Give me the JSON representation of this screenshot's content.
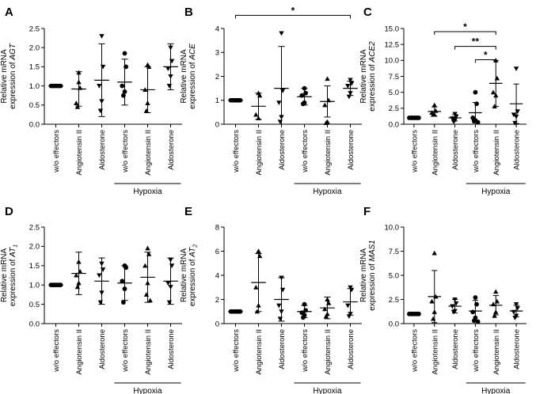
{
  "chart_data": [
    {
      "panel": "A",
      "type": "scatter",
      "ylabel_line1": "Relative mRNA",
      "ylabel_line2": "expression of",
      "ylabel_gene": "AGT",
      "ylabel_sub": "",
      "ylim": [
        0,
        2.5
      ],
      "yticks": [
        "0.0",
        "0.5",
        "1.0",
        "1.5",
        "2.0",
        "2.5"
      ],
      "categories": [
        "w/o effectors",
        "Angiotensin II",
        "Aldosterone",
        "w/o effectors",
        "Angiotensin II",
        "Aldosterone"
      ],
      "group_label": "Hypoxia",
      "group_start": 3,
      "group_end": 5,
      "markers": [
        "circle",
        "triangle",
        "triangle-down",
        "circle",
        "triangle",
        "triangle-down"
      ],
      "means": [
        1.0,
        0.92,
        1.15,
        1.1,
        0.9,
        1.5
      ],
      "sd": [
        0.0,
        0.45,
        0.95,
        0.6,
        0.6,
        0.6
      ],
      "points": [
        [
          1,
          1,
          1,
          1,
          1,
          1
        ],
        [
          1.35,
          0.95,
          0.55,
          1.1,
          0.45
        ],
        [
          2.3,
          1.5,
          1.0,
          0.6,
          0.35
        ],
        [
          1.85,
          1.5,
          1.0,
          0.85,
          0.75
        ],
        [
          1.55,
          1.5,
          0.9,
          0.55,
          0.35
        ],
        [
          2.0,
          1.65,
          1.45,
          1.25,
          1.0
        ]
      ],
      "significance": []
    },
    {
      "panel": "B",
      "type": "scatter",
      "ylabel_line1": "Relative mRNA",
      "ylabel_line2": "expression of",
      "ylabel_gene": "ACE",
      "ylabel_sub": "",
      "ylim": [
        0,
        4
      ],
      "yticks": [
        "0",
        "1",
        "2",
        "3",
        "4"
      ],
      "categories": [
        "w/o effectors",
        "Angiotensin II",
        "Aldosterone",
        "w/o effectors",
        "Angiotensin II",
        "Aldosterone"
      ],
      "group_label": "Hypoxia",
      "group_start": 3,
      "group_end": 5,
      "markers": [
        "circle",
        "triangle",
        "triangle-down",
        "circle",
        "triangle",
        "triangle-down"
      ],
      "means": [
        1.0,
        0.75,
        1.5,
        1.15,
        0.95,
        1.5
      ],
      "sd": [
        0.0,
        0.55,
        1.75,
        0.35,
        0.65,
        0.3
      ],
      "points": [
        [
          1,
          1,
          1,
          1,
          1,
          1
        ],
        [
          1.3,
          1.2,
          0.4,
          0.25
        ],
        [
          3.8,
          1.4,
          0.9,
          0.3,
          0.1
        ],
        [
          1.5,
          1.3,
          1.2,
          0.9,
          0.85
        ],
        [
          1.9,
          1.0,
          0.8,
          0.1,
          0.05
        ],
        [
          1.85,
          1.7,
          1.6,
          1.3,
          1.15
        ]
      ],
      "significance": [
        {
          "from": 0,
          "to": 5,
          "level": 4.55,
          "label": "*"
        }
      ]
    },
    {
      "panel": "C",
      "type": "scatter",
      "ylabel_line1": "Relative mRNA",
      "ylabel_line2": "expression of",
      "ylabel_gene": "ACE2",
      "ylabel_sub": "",
      "ylim": [
        0,
        15
      ],
      "yticks": [
        "0.0",
        "2.5",
        "5.0",
        "7.5",
        "10.0",
        "12.5",
        "15.0"
      ],
      "categories": [
        "w/o effectors",
        "Angiotensin II",
        "Aldosterone",
        "w/o effectors",
        "Angiotensin II",
        "Aldosterone"
      ],
      "group_label": "Hypoxia",
      "group_start": 3,
      "group_end": 5,
      "markers": [
        "circle",
        "triangle",
        "triangle-down",
        "circle",
        "triangle",
        "triangle-down"
      ],
      "means": [
        1.0,
        2.0,
        1.0,
        1.8,
        6.4,
        3.2
      ],
      "sd": [
        0.0,
        0.7,
        0.5,
        1.6,
        3.6,
        3.1
      ],
      "points": [
        [
          1,
          1,
          1,
          1,
          1,
          1
        ],
        [
          3.0,
          2.1,
          1.8,
          1.5,
          1.5
        ],
        [
          1.6,
          1.2,
          0.9,
          0.6,
          0.4
        ],
        [
          5.0,
          3.2,
          1.0,
          0.6,
          0.5,
          0.3
        ],
        [
          10.0,
          7.2,
          5.0,
          4.5,
          2.8
        ],
        [
          8.7,
          2.0,
          1.5,
          1.2,
          0.2
        ]
      ],
      "significance": [
        {
          "from": 1,
          "to": 4,
          "level": 14.5,
          "label": "*"
        },
        {
          "from": 2,
          "to": 4,
          "level": 12.2,
          "label": "**"
        },
        {
          "from": 3,
          "to": 4,
          "level": 10.1,
          "label": "*"
        }
      ]
    },
    {
      "panel": "D",
      "type": "scatter",
      "ylabel_line1": "Relative mRNA",
      "ylabel_line2": "expression of",
      "ylabel_gene": "AT",
      "ylabel_sub": "1",
      "ylim": [
        0,
        2.5
      ],
      "yticks": [
        "0.0",
        "0.5",
        "1.0",
        "1.5",
        "2.0",
        "2.5"
      ],
      "categories": [
        "w/o effectors",
        "Angiotensin II",
        "Aldosterone",
        "w/o effectors",
        "Angiotensin II",
        "Aldosterone"
      ],
      "group_label": "Hypoxia",
      "group_start": 3,
      "group_end": 5,
      "markers": [
        "circle",
        "triangle",
        "triangle-down",
        "circle",
        "triangle",
        "triangle-down"
      ],
      "means": [
        1.0,
        1.3,
        1.1,
        1.05,
        1.2,
        1.1
      ],
      "sd": [
        0.0,
        0.55,
        0.6,
        0.45,
        0.65,
        0.6
      ],
      "points": [
        [
          1,
          1,
          1,
          1,
          1,
          1
        ],
        [
          1.6,
          1.35,
          1.25,
          1.05,
          0.95
        ],
        [
          1.55,
          1.4,
          1.25,
          0.8,
          0.55
        ],
        [
          1.5,
          1.45,
          1.1,
          0.9,
          0.55
        ],
        [
          1.95,
          1.8,
          1.5,
          1.05,
          0.75,
          0.6
        ],
        [
          1.65,
          1.5,
          1.05,
          0.95,
          0.55
        ]
      ],
      "significance": []
    },
    {
      "panel": "E",
      "type": "scatter",
      "ylabel_line1": "Relative mRNA",
      "ylabel_line2": "expression of",
      "ylabel_gene": "AT",
      "ylabel_sub": "2",
      "ylim": [
        0,
        8
      ],
      "yticks": [
        "0",
        "2",
        "4",
        "6",
        "8"
      ],
      "categories": [
        "w/o effectors",
        "Angiotensin II",
        "Aldosterone",
        "w/o effectors",
        "Angiotensin II",
        "Aldosterone"
      ],
      "group_label": "Hypoxia",
      "group_start": 3,
      "group_end": 5,
      "markers": [
        "circle",
        "triangle",
        "triangle-down",
        "circle",
        "triangle",
        "triangle-down"
      ],
      "means": [
        1.0,
        3.4,
        2.0,
        1.0,
        1.3,
        1.8
      ],
      "sd": [
        0.0,
        2.4,
        1.8,
        0.5,
        0.9,
        1.1
      ],
      "points": [
        [
          1,
          1,
          1,
          1,
          1,
          1
        ],
        [
          6.0,
          5.6,
          3.0,
          1.5,
          1.0
        ],
        [
          3.8,
          2.8,
          1.5,
          1.0,
          0.4
        ],
        [
          1.6,
          1.1,
          0.9,
          0.7,
          0.5
        ],
        [
          2.0,
          1.7,
          1.2,
          0.8,
          0.6
        ],
        [
          3.0,
          2.8,
          1.5,
          0.8,
          0.6
        ]
      ],
      "significance": []
    },
    {
      "panel": "F",
      "type": "scatter",
      "ylabel_line1": "Relative mRNA",
      "ylabel_line2": "expression of",
      "ylabel_gene": "MAS1",
      "ylabel_sub": "",
      "ylim": [
        0,
        10
      ],
      "yticks": [
        "0.0",
        "2.5",
        "5.0",
        "7.5",
        "10.0"
      ],
      "categories": [
        "w/o effectors",
        "Angiotensin II",
        "Aldosterone",
        "w/o effectors",
        "Angiotensin II",
        "Aldosterone"
      ],
      "group_label": "Hypoxia",
      "group_start": 3,
      "group_end": 5,
      "markers": [
        "circle",
        "triangle",
        "triangle-down",
        "circle",
        "triangle",
        "triangle-down"
      ],
      "means": [
        1.0,
        2.8,
        1.8,
        1.3,
        1.9,
        1.3
      ],
      "sd": [
        0.0,
        2.7,
        0.7,
        1.1,
        1.0,
        0.6
      ],
      "points": [
        [
          1,
          1,
          1,
          1,
          1,
          1
        ],
        [
          7.3,
          2.8,
          2.3,
          1.2,
          0.5
        ],
        [
          2.5,
          2.1,
          1.8,
          1.3,
          1.2
        ],
        [
          2.7,
          2.0,
          1.2,
          0.6,
          0.3,
          0.2
        ],
        [
          3.3,
          2.3,
          2.0,
          1.2,
          0.8
        ],
        [
          2.0,
          1.6,
          1.2,
          0.8,
          0.6
        ]
      ],
      "significance": []
    }
  ]
}
